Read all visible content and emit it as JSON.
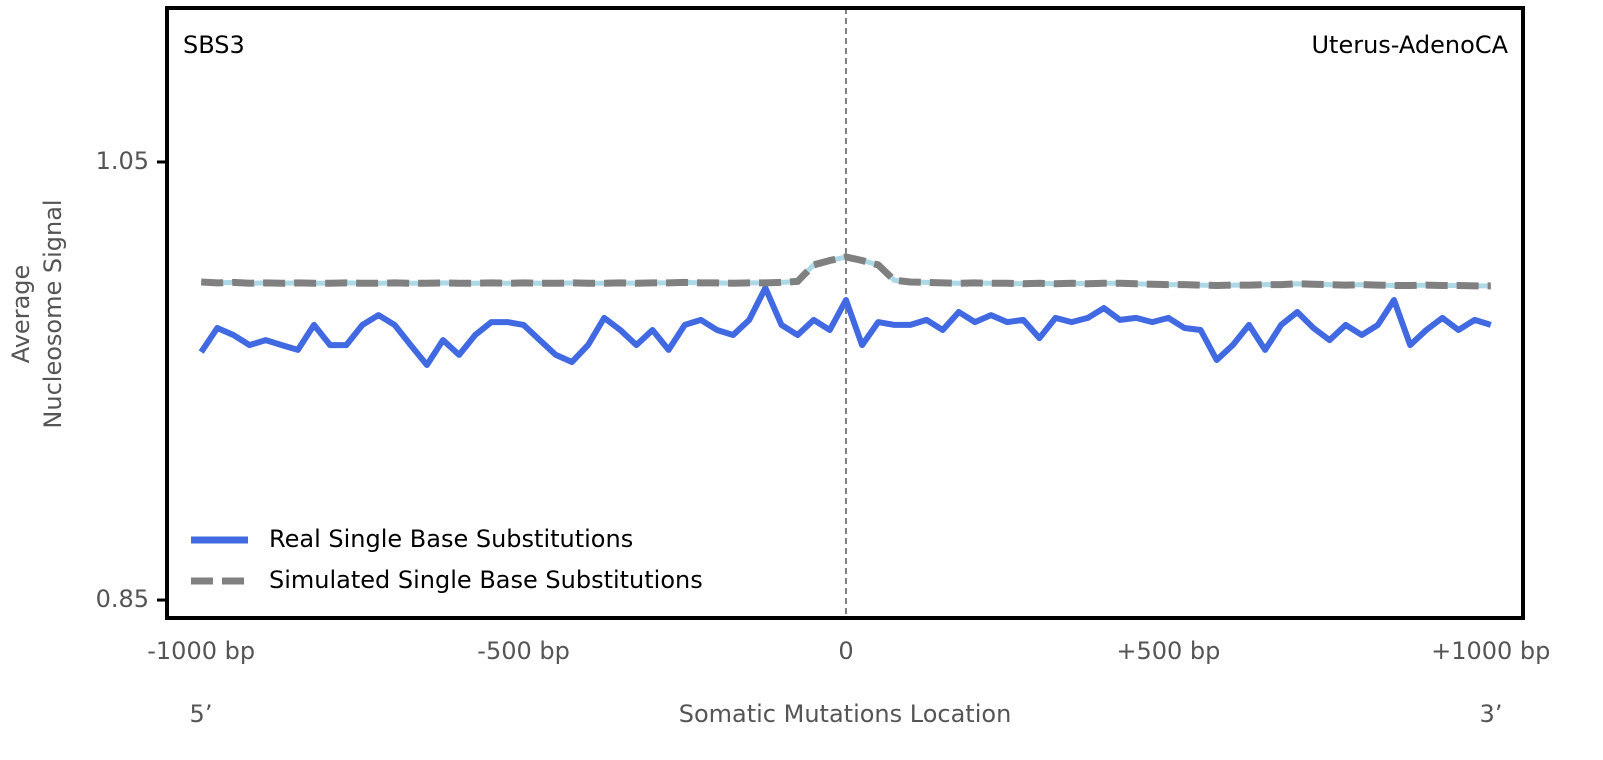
{
  "chart_data": {
    "type": "line",
    "title": "SBS3",
    "subtitle": "Uterus-AdenoCA",
    "ylabel": [
      "Average",
      "Nucleosome Signal"
    ],
    "xlabel": "Somatic Mutations Location",
    "annotations": [
      "5’",
      "3’"
    ],
    "vline": 0,
    "legend": "lower left",
    "xlim": [
      -1053,
      1050
    ],
    "ylim": [
      0.8418,
      1.1203
    ],
    "xticks": [
      {
        "value": -1000,
        "label": "-1000 bp"
      },
      {
        "value": -500,
        "label": "-500 bp"
      },
      0,
      {
        "value": 500,
        "label": "+500 bp"
      },
      {
        "value": 1000,
        "label": "+1000 bp"
      }
    ],
    "yticks": [
      0.85,
      1.05
    ],
    "x": [
      -1000,
      -975,
      -950,
      -925,
      -900,
      -875,
      -850,
      -825,
      -800,
      -775,
      -750,
      -725,
      -700,
      -675,
      -650,
      -625,
      -600,
      -575,
      -550,
      -525,
      -500,
      -475,
      -450,
      -425,
      -400,
      -375,
      -350,
      -325,
      -300,
      -275,
      -250,
      -225,
      -200,
      -175,
      -150,
      -125,
      -100,
      -75,
      -50,
      -25,
      0,
      25,
      50,
      75,
      100,
      125,
      150,
      175,
      200,
      225,
      250,
      275,
      300,
      325,
      350,
      375,
      400,
      425,
      450,
      475,
      500,
      525,
      550,
      575,
      600,
      625,
      650,
      675,
      700,
      725,
      750,
      775,
      800,
      825,
      850,
      875,
      900,
      925,
      950,
      975,
      1000
    ],
    "series": [
      {
        "name": "Real Single Base Substitutions",
        "color": "#4169e1",
        "style": "solid",
        "values": [
          0.9632,
          0.9742,
          0.971,
          0.9664,
          0.9687,
          0.9664,
          0.9642,
          0.9756,
          0.9664,
          0.9664,
          0.9756,
          0.9801,
          0.9756,
          0.9664,
          0.9573,
          0.9687,
          0.9619,
          0.971,
          0.9769,
          0.9769,
          0.9756,
          0.9687,
          0.9619,
          0.9587,
          0.9664,
          0.9788,
          0.9733,
          0.9664,
          0.9733,
          0.9642,
          0.9756,
          0.9779,
          0.9733,
          0.971,
          0.9779,
          0.9925,
          0.9756,
          0.971,
          0.9779,
          0.9733,
          0.987,
          0.9664,
          0.9769,
          0.9756,
          0.9756,
          0.9779,
          0.9733,
          0.9815,
          0.9769,
          0.9801,
          0.9769,
          0.9779,
          0.9696,
          0.9788,
          0.9769,
          0.9788,
          0.9833,
          0.9779,
          0.9788,
          0.9769,
          0.9788,
          0.9742,
          0.9733,
          0.9596,
          0.9664,
          0.9756,
          0.9642,
          0.9756,
          0.9815,
          0.9742,
          0.9687,
          0.9756,
          0.971,
          0.9756,
          0.987,
          0.9664,
          0.9733,
          0.9788,
          0.9733,
          0.9779,
          0.9756
        ]
      },
      {
        "name": "Simulated Single Base Substitutions",
        "color": "#808080",
        "style": "dashed",
        "values": [
          0.9952,
          0.9948,
          0.995,
          0.9946,
          0.9948,
          0.9946,
          0.9948,
          0.9946,
          0.9946,
          0.9948,
          0.9946,
          0.9946,
          0.9948,
          0.9946,
          0.9946,
          0.9948,
          0.9946,
          0.9946,
          0.9948,
          0.9946,
          0.9948,
          0.9946,
          0.9946,
          0.9948,
          0.9946,
          0.9946,
          0.9948,
          0.9946,
          0.9948,
          0.9948,
          0.995,
          0.9948,
          0.9948,
          0.9946,
          0.9948,
          0.9948,
          0.995,
          0.9955,
          1.003,
          1.005,
          1.0066,
          1.005,
          1.003,
          0.996,
          0.9952,
          0.995,
          0.9948,
          0.9946,
          0.9948,
          0.9946,
          0.9946,
          0.9944,
          0.9946,
          0.9944,
          0.9946,
          0.9944,
          0.9946,
          0.9946,
          0.9944,
          0.9942,
          0.994,
          0.994,
          0.9938,
          0.9936,
          0.9938,
          0.9938,
          0.994,
          0.994,
          0.9944,
          0.9942,
          0.994,
          0.9938,
          0.994,
          0.9938,
          0.9936,
          0.9936,
          0.9938,
          0.9936,
          0.9936,
          0.9934,
          0.9934
        ]
      }
    ]
  }
}
